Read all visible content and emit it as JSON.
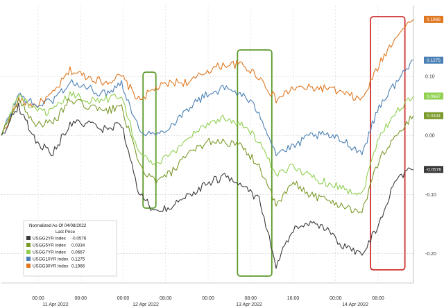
{
  "chart_data": {
    "type": "line",
    "title": "",
    "xlabel": "",
    "ylabel": "",
    "x_ticks": [
      "00:00",
      "08:00",
      "00:00",
      "08:00",
      "00:00",
      "08:00",
      "16:00",
      "00:00",
      "08:00"
    ],
    "date_labels": [
      "11 Apr 2022",
      "12 Apr 2022",
      "13 Apr 2022",
      "14 Apr 2022"
    ],
    "y_ticks": [
      "0.10",
      "0.00",
      "-0.10",
      "-0.20"
    ],
    "ylim": [
      -0.25,
      0.22
    ],
    "grid": true,
    "legend": {
      "placement": "bottom-left",
      "title_line1": "Normalized As Of 04/08/2022",
      "title_line2": "Last Price",
      "entries": [
        {
          "name": "USGG2YR Index",
          "value": "-0.0576",
          "color": "#3a3a3a"
        },
        {
          "name": "USGG5YR Index",
          "value": "0.0334",
          "color": "#7a9a2a"
        },
        {
          "name": "USGG7YR Index",
          "value": "0.0667",
          "color": "#90d050"
        },
        {
          "name": "USGG10YR Index",
          "value": "0.1275",
          "color": "#4a7fb5"
        },
        {
          "name": "USGG30YR Index",
          "value": "0.1966",
          "color": "#e0761e"
        }
      ]
    },
    "x": [
      0,
      4,
      8,
      12,
      16,
      20,
      24,
      28,
      32,
      36,
      40,
      44,
      48,
      52,
      56,
      60,
      64,
      68,
      72,
      76,
      80,
      84,
      88,
      92,
      96
    ],
    "series": [
      {
        "name": "USGG30YR Index",
        "color": "#e0761e",
        "last_label": "0.1966",
        "values": [
          0.0,
          0.06,
          0.05,
          0.07,
          0.11,
          0.1,
          0.09,
          0.1,
          0.06,
          0.08,
          0.09,
          0.09,
          0.11,
          0.12,
          0.12,
          0.1,
          0.06,
          0.08,
          0.08,
          0.08,
          0.07,
          0.06,
          0.12,
          0.17,
          0.1966
        ]
      },
      {
        "name": "USGG10YR Index",
        "color": "#4a7fb5",
        "last_label": "0.1275",
        "values": [
          0.0,
          0.07,
          0.05,
          0.06,
          0.09,
          0.08,
          0.07,
          0.09,
          0.01,
          0.0,
          0.02,
          0.05,
          0.07,
          0.08,
          0.07,
          0.04,
          -0.03,
          -0.02,
          0.0,
          0.0,
          -0.01,
          -0.03,
          0.05,
          0.09,
          0.1275
        ]
      },
      {
        "name": "USGG7YR Index",
        "color": "#90d050",
        "last_label": "0.0667",
        "values": [
          0.0,
          0.07,
          0.04,
          0.04,
          0.07,
          0.06,
          0.06,
          0.07,
          -0.03,
          -0.05,
          -0.03,
          0.0,
          0.02,
          0.03,
          0.02,
          -0.01,
          -0.07,
          -0.05,
          -0.07,
          -0.08,
          -0.09,
          -0.1,
          0.0,
          0.04,
          0.0667
        ]
      },
      {
        "name": "USGG5YR Index",
        "color": "#7a9a2a",
        "last_label": "0.0334",
        "values": [
          0.0,
          0.06,
          0.02,
          0.02,
          0.06,
          0.05,
          0.04,
          0.05,
          -0.05,
          -0.08,
          -0.06,
          -0.03,
          -0.01,
          -0.01,
          -0.02,
          -0.05,
          -0.12,
          -0.08,
          -0.1,
          -0.11,
          -0.12,
          -0.13,
          -0.04,
          0.0,
          0.0334
        ]
      },
      {
        "name": "USGG2YR Index",
        "color": "#3a3a3a",
        "last_label": "-0.0576",
        "values": [
          0.0,
          0.05,
          -0.01,
          -0.03,
          0.02,
          0.02,
          0.01,
          0.02,
          -0.1,
          -0.13,
          -0.12,
          -0.1,
          -0.08,
          -0.07,
          -0.08,
          -0.11,
          -0.22,
          -0.16,
          -0.15,
          -0.16,
          -0.19,
          -0.2,
          -0.15,
          -0.07,
          -0.0576
        ]
      }
    ],
    "highlights": [
      {
        "x_range": [
          33,
          36
        ],
        "color": "#5a9a2a"
      },
      {
        "x_range": [
          55,
          63
        ],
        "color": "#5a9a2a"
      },
      {
        "x_range": [
          86,
          94
        ],
        "color": "#d03030"
      }
    ]
  }
}
